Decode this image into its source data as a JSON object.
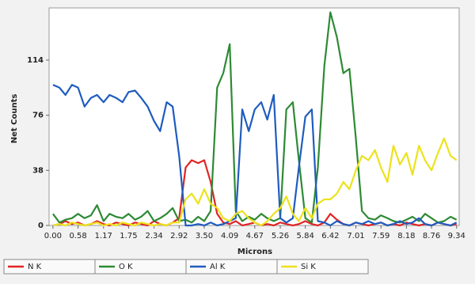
{
  "chart_data": {
    "type": "line",
    "y_label": "Net Counts",
    "x_label": "Microns",
    "x": [
      0,
      0.15,
      0.29,
      0.44,
      0.58,
      0.73,
      0.88,
      1.02,
      1.17,
      1.31,
      1.46,
      1.61,
      1.75,
      1.9,
      2.04,
      2.19,
      2.34,
      2.48,
      2.63,
      2.77,
      2.92,
      3.07,
      3.21,
      3.36,
      3.5,
      3.65,
      3.8,
      3.94,
      4.09,
      4.23,
      4.38,
      4.53,
      4.67,
      4.82,
      4.96,
      5.11,
      5.26,
      5.4,
      5.55,
      5.69,
      5.84,
      5.99,
      6.13,
      6.28,
      6.42,
      6.57,
      6.72,
      6.86,
      7.01,
      7.15,
      7.3,
      7.45,
      7.59,
      7.74,
      7.88,
      8.03,
      8.18,
      8.32,
      8.47,
      8.61,
      8.76,
      8.91,
      9.05,
      9.2,
      9.34
    ],
    "series": [
      {
        "name": "N K",
        "color": "#e02424",
        "values": [
          0,
          1,
          3,
          1,
          2,
          0,
          1,
          3,
          1,
          0,
          2,
          1,
          0,
          2,
          1,
          0,
          3,
          1,
          0,
          2,
          5,
          40,
          45,
          43,
          45,
          30,
          8,
          2,
          1,
          3,
          0,
          1,
          2,
          0,
          1,
          0,
          2,
          1,
          0,
          1,
          3,
          1,
          0,
          2,
          8,
          4,
          1,
          0,
          2,
          1,
          0,
          1,
          2,
          0,
          1,
          0,
          2,
          1,
          0,
          1,
          0,
          2,
          1,
          0,
          1
        ]
      },
      {
        "name": "O K",
        "color": "#2e8a34",
        "values": [
          8,
          2,
          4,
          5,
          8,
          5,
          7,
          14,
          3,
          8,
          6,
          5,
          8,
          4,
          6,
          10,
          3,
          5,
          8,
          12,
          3,
          4,
          2,
          6,
          3,
          10,
          95,
          105,
          125,
          10,
          3,
          6,
          4,
          8,
          5,
          3,
          5,
          80,
          85,
          45,
          5,
          2,
          40,
          110,
          147,
          130,
          105,
          108,
          60,
          10,
          5,
          4,
          7,
          5,
          3,
          2,
          4,
          6,
          3,
          8,
          5,
          2,
          3,
          6,
          4
        ]
      },
      {
        "name": "Al K",
        "color": "#1f5cbf",
        "values": [
          97,
          95,
          90,
          97,
          95,
          82,
          88,
          90,
          85,
          90,
          88,
          85,
          92,
          93,
          88,
          82,
          72,
          65,
          85,
          82,
          48,
          0,
          0,
          1,
          0,
          2,
          0,
          1,
          3,
          5,
          80,
          65,
          80,
          85,
          73,
          90,
          5,
          2,
          5,
          40,
          75,
          80,
          3,
          2,
          0,
          3,
          1,
          0,
          2,
          1,
          3,
          1,
          2,
          0,
          1,
          3,
          1,
          2,
          5,
          1,
          0,
          2,
          1,
          0,
          2
        ]
      },
      {
        "name": "Si K",
        "color": "#ece21c",
        "values": [
          0,
          1,
          0,
          2,
          1,
          0,
          1,
          2,
          0,
          1,
          0,
          2,
          1,
          0,
          2,
          1,
          0,
          1,
          0,
          2,
          2,
          18,
          22,
          15,
          25,
          15,
          12,
          5,
          3,
          8,
          10,
          5,
          2,
          0,
          3,
          8,
          12,
          20,
          8,
          3,
          12,
          5,
          15,
          18,
          18,
          22,
          30,
          25,
          38,
          48,
          45,
          52,
          40,
          30,
          55,
          42,
          50,
          35,
          55,
          45,
          38,
          50,
          60,
          48,
          45
        ]
      }
    ],
    "xlim": [
      -0.09,
      9.4
    ],
    "ylim": [
      0,
      150
    ],
    "xticks": [
      {
        "value": 0,
        "label": "0.00"
      },
      0.58,
      1.17,
      1.75,
      2.34,
      2.92,
      {
        "value": 3.5,
        "label": "3.50"
      },
      4.09,
      4.67,
      5.26,
      5.84,
      6.42,
      7.01,
      7.59,
      8.18,
      8.76,
      9.34
    ],
    "yticks": [
      0,
      38,
      76,
      114
    ],
    "legend": "bottom"
  }
}
